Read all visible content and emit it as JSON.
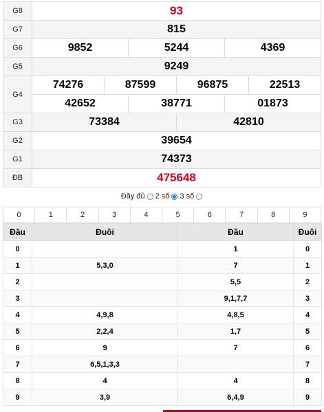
{
  "prizes": [
    {
      "label": "G8",
      "values": [
        "93"
      ],
      "red": true
    },
    {
      "label": "G7",
      "values": [
        "815"
      ]
    },
    {
      "label": "G6",
      "values": [
        "9852",
        "5244",
        "4369"
      ]
    },
    {
      "label": "G5",
      "values": [
        "9249"
      ]
    },
    {
      "label": "G4",
      "row1": [
        "74276",
        "87599",
        "96875",
        "22513"
      ],
      "row2": [
        "42652",
        "38771",
        "01873"
      ]
    },
    {
      "label": "G3",
      "values": [
        "73384",
        "42810"
      ]
    },
    {
      "label": "G2",
      "values": [
        "39654"
      ]
    },
    {
      "label": "G1",
      "values": [
        "74373"
      ]
    },
    {
      "label": "ĐB",
      "values": [
        "475648"
      ],
      "red": true
    }
  ],
  "options": {
    "full": "Đầy đủ",
    "two": "2 số",
    "three": "3 số",
    "selected": "two"
  },
  "digits": [
    "0",
    "1",
    "2",
    "3",
    "4",
    "5",
    "6",
    "7",
    "8",
    "9"
  ],
  "loto": {
    "headers": [
      "Đầu",
      "Đuôi",
      "Đầu",
      "Đuôi"
    ],
    "rows": [
      [
        "0",
        "",
        "1",
        "0"
      ],
      [
        "1",
        "5,3,0",
        "7",
        "1"
      ],
      [
        "2",
        "",
        "5,5",
        "2"
      ],
      [
        "3",
        "",
        "9,1,7,7",
        "3"
      ],
      [
        "4",
        "4,9,8",
        "4,8,5",
        "4"
      ],
      [
        "5",
        "2,2,4",
        "1,7",
        "5"
      ],
      [
        "6",
        "9",
        "7",
        "6"
      ],
      [
        "7",
        "6,5,1,3,3",
        "",
        "7"
      ],
      [
        "8",
        "4",
        "4",
        "8"
      ],
      [
        "9",
        "3,9",
        "6,4,9",
        "9"
      ]
    ]
  },
  "colors": {
    "red": "#d0021b",
    "radio": "#1a73e8"
  }
}
